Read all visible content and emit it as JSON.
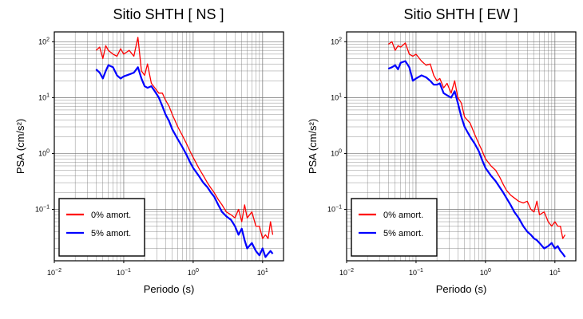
{
  "chart_data": [
    {
      "type": "line",
      "title": "Sitio SHTH [ NS ]",
      "xlabel": "Periodo (s)",
      "ylabel": "PSA (cm/s²)",
      "xscale": "log",
      "yscale": "log",
      "xlim": [
        0.01,
        20
      ],
      "ylim": [
        0.012,
        150
      ],
      "x_ticks": [
        {
          "value": 0.01,
          "base": "10",
          "exp": "−2"
        },
        {
          "value": 0.1,
          "base": "10",
          "exp": "−1"
        },
        {
          "value": 1,
          "base": "10",
          "exp": "0"
        },
        {
          "value": 10,
          "base": "10",
          "exp": "1"
        }
      ],
      "y_ticks": [
        {
          "value": 0.1,
          "base": "10",
          "exp": "−1"
        },
        {
          "value": 1,
          "base": "10",
          "exp": "0"
        },
        {
          "value": 10,
          "base": "10",
          "exp": "1"
        },
        {
          "value": 100,
          "base": "10",
          "exp": "2"
        }
      ],
      "grid": true,
      "legend": "bottom-left",
      "series": [
        {
          "name": "0% amort.",
          "color": "#ff0000",
          "x": [
            0.04,
            0.045,
            0.05,
            0.055,
            0.06,
            0.07,
            0.08,
            0.09,
            0.1,
            0.12,
            0.14,
            0.16,
            0.18,
            0.2,
            0.22,
            0.25,
            0.28,
            0.32,
            0.36,
            0.4,
            0.45,
            0.5,
            0.6,
            0.7,
            0.8,
            0.9,
            1.0,
            1.2,
            1.4,
            1.6,
            1.8,
            2.0,
            2.3,
            2.6,
            3.0,
            3.5,
            4.0,
            4.5,
            5,
            5.5,
            6,
            7,
            8,
            9,
            10,
            11,
            12,
            13,
            14
          ],
          "y": [
            70,
            80,
            50,
            85,
            70,
            60,
            55,
            75,
            60,
            70,
            55,
            120,
            30,
            25,
            40,
            18,
            15,
            12,
            12,
            9,
            7,
            5,
            3,
            2.1,
            1.5,
            1.1,
            0.85,
            0.55,
            0.4,
            0.3,
            0.24,
            0.2,
            0.15,
            0.12,
            0.09,
            0.08,
            0.07,
            0.1,
            0.06,
            0.12,
            0.07,
            0.09,
            0.05,
            0.05,
            0.03,
            0.035,
            0.03,
            0.06,
            0.035
          ]
        },
        {
          "name": "5% amort.",
          "color": "#0000ff",
          "x": [
            0.04,
            0.045,
            0.05,
            0.055,
            0.06,
            0.07,
            0.08,
            0.09,
            0.1,
            0.12,
            0.14,
            0.16,
            0.18,
            0.2,
            0.22,
            0.25,
            0.28,
            0.32,
            0.36,
            0.4,
            0.45,
            0.5,
            0.6,
            0.7,
            0.8,
            0.9,
            1.0,
            1.2,
            1.4,
            1.6,
            1.8,
            2.0,
            2.3,
            2.6,
            3.0,
            3.5,
            4.0,
            4.5,
            5,
            5.5,
            6,
            7,
            8,
            9,
            10,
            11,
            12,
            13,
            14
          ],
          "y": [
            32,
            28,
            22,
            30,
            38,
            35,
            25,
            22,
            24,
            26,
            28,
            35,
            22,
            16,
            15,
            16,
            13,
            10,
            7,
            5,
            3.8,
            2.7,
            1.8,
            1.3,
            0.95,
            0.7,
            0.55,
            0.4,
            0.3,
            0.25,
            0.2,
            0.17,
            0.12,
            0.09,
            0.075,
            0.065,
            0.05,
            0.035,
            0.045,
            0.028,
            0.02,
            0.025,
            0.018,
            0.015,
            0.02,
            0.014,
            0.016,
            0.018,
            0.016
          ]
        }
      ]
    },
    {
      "type": "line",
      "title": "Sitio SHTH [ EW ]",
      "xlabel": "Periodo (s)",
      "ylabel": "PSA (cm/s²)",
      "xscale": "log",
      "yscale": "log",
      "xlim": [
        0.01,
        20
      ],
      "ylim": [
        0.012,
        150
      ],
      "x_ticks": [
        {
          "value": 0.01,
          "base": "10",
          "exp": "−2"
        },
        {
          "value": 0.1,
          "base": "10",
          "exp": "−1"
        },
        {
          "value": 1,
          "base": "10",
          "exp": "0"
        },
        {
          "value": 10,
          "base": "10",
          "exp": "1"
        }
      ],
      "y_ticks": [
        {
          "value": 0.1,
          "base": "10",
          "exp": "−1"
        },
        {
          "value": 1,
          "base": "10",
          "exp": "0"
        },
        {
          "value": 10,
          "base": "10",
          "exp": "1"
        },
        {
          "value": 100,
          "base": "10",
          "exp": "2"
        }
      ],
      "grid": true,
      "legend": "bottom-left",
      "series": [
        {
          "name": "0% amort.",
          "color": "#ff0000",
          "x": [
            0.04,
            0.045,
            0.05,
            0.055,
            0.06,
            0.07,
            0.08,
            0.09,
            0.1,
            0.12,
            0.14,
            0.16,
            0.18,
            0.2,
            0.22,
            0.25,
            0.28,
            0.32,
            0.36,
            0.4,
            0.45,
            0.5,
            0.6,
            0.7,
            0.8,
            0.9,
            1.0,
            1.2,
            1.4,
            1.6,
            1.8,
            2.0,
            2.3,
            2.6,
            3.0,
            3.5,
            4.0,
            4.5,
            5,
            5.5,
            6,
            7,
            8,
            9,
            10,
            11,
            12,
            13,
            14
          ],
          "y": [
            90,
            100,
            70,
            85,
            80,
            95,
            60,
            55,
            60,
            45,
            38,
            40,
            25,
            20,
            22,
            15,
            18,
            12,
            20,
            10,
            8,
            4.5,
            3.5,
            2.2,
            1.5,
            1.1,
            0.8,
            0.6,
            0.5,
            0.38,
            0.28,
            0.22,
            0.18,
            0.16,
            0.14,
            0.13,
            0.14,
            0.1,
            0.09,
            0.14,
            0.08,
            0.09,
            0.06,
            0.05,
            0.06,
            0.05,
            0.05,
            0.03,
            0.035
          ]
        },
        {
          "name": "5% amort.",
          "color": "#0000ff",
          "x": [
            0.04,
            0.045,
            0.05,
            0.055,
            0.06,
            0.07,
            0.08,
            0.09,
            0.1,
            0.12,
            0.14,
            0.16,
            0.18,
            0.2,
            0.22,
            0.25,
            0.28,
            0.32,
            0.36,
            0.4,
            0.45,
            0.5,
            0.6,
            0.7,
            0.8,
            0.9,
            1.0,
            1.2,
            1.4,
            1.6,
            1.8,
            2.0,
            2.3,
            2.6,
            3.0,
            3.5,
            4.0,
            4.5,
            5,
            5.5,
            6,
            7,
            8,
            9,
            10,
            11,
            12,
            13,
            14
          ],
          "y": [
            33,
            35,
            38,
            32,
            42,
            45,
            35,
            20,
            22,
            25,
            23,
            20,
            17,
            17,
            18,
            12,
            11,
            10,
            13,
            8,
            4.5,
            3,
            2,
            1.5,
            1.1,
            0.75,
            0.55,
            0.4,
            0.32,
            0.25,
            0.2,
            0.16,
            0.12,
            0.09,
            0.07,
            0.05,
            0.04,
            0.035,
            0.03,
            0.028,
            0.025,
            0.02,
            0.022,
            0.025,
            0.02,
            0.022,
            0.018,
            0.016,
            0.014
          ]
        }
      ]
    }
  ]
}
